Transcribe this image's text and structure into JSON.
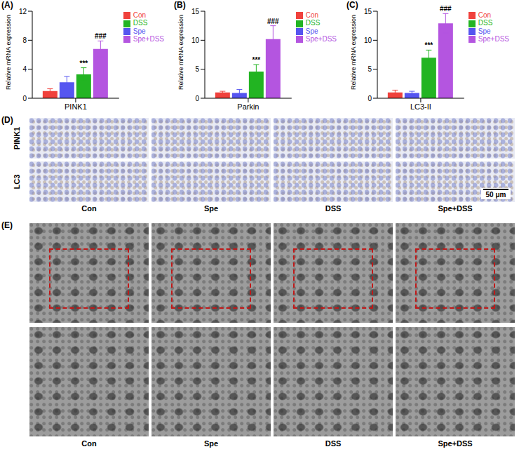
{
  "chart_data": [
    {
      "type": "bar",
      "panel": "(A)",
      "categories": [
        "PINK1"
      ],
      "ylabel": "Relative mRNA expression",
      "ylim": [
        0,
        12
      ],
      "yticks": [
        0,
        4,
        8,
        12
      ],
      "legend": "top right",
      "series": [
        {
          "name": "Con",
          "color": "#f0413c",
          "values": [
            1.0
          ],
          "errors": [
            0.3
          ]
        },
        {
          "name": "Spe",
          "color": "#5555f0",
          "values": [
            2.2
          ],
          "errors": [
            0.8
          ]
        },
        {
          "name": "DSS",
          "color": "#22b422",
          "values": [
            3.3
          ],
          "errors": [
            0.9
          ],
          "annotation": "***"
        },
        {
          "name": "Spe+DSS",
          "color": "#b455e0",
          "values": [
            6.8
          ],
          "errors": [
            1.1
          ],
          "annotation": "###"
        }
      ]
    },
    {
      "type": "bar",
      "panel": "(B)",
      "categories": [
        "Parkin"
      ],
      "ylabel": "Relative mRNA expression",
      "ylim": [
        0,
        15
      ],
      "yticks": [
        0,
        5,
        10,
        15
      ],
      "legend": "top right",
      "series": [
        {
          "name": "Con",
          "color": "#f0413c",
          "values": [
            1.0
          ],
          "errors": [
            0.2
          ]
        },
        {
          "name": "Spe",
          "color": "#5555f0",
          "values": [
            0.9
          ],
          "errors": [
            0.6
          ]
        },
        {
          "name": "DSS",
          "color": "#22b422",
          "values": [
            4.6
          ],
          "errors": [
            1.2
          ],
          "annotation": "***"
        },
        {
          "name": "Spe+DSS",
          "color": "#b455e0",
          "values": [
            10.2
          ],
          "errors": [
            2.3
          ],
          "annotation": "###"
        }
      ]
    },
    {
      "type": "bar",
      "panel": "(C)",
      "categories": [
        "LC3-II"
      ],
      "ylabel": "Relative mRNA expression",
      "ylim": [
        0,
        15
      ],
      "yticks": [
        0,
        5,
        10,
        15
      ],
      "legend": "top right",
      "series": [
        {
          "name": "Con",
          "color": "#f0413c",
          "values": [
            1.0
          ],
          "errors": [
            0.4
          ]
        },
        {
          "name": "Spe",
          "color": "#5555f0",
          "values": [
            0.9
          ],
          "errors": [
            0.3
          ]
        },
        {
          "name": "DSS",
          "color": "#22b422",
          "values": [
            7.0
          ],
          "errors": [
            1.3
          ],
          "annotation": "***"
        },
        {
          "name": "Spe+DSS",
          "color": "#b455e0",
          "values": [
            12.9
          ],
          "errors": [
            1.7
          ],
          "annotation": "###"
        }
      ]
    }
  ],
  "panels": [
    {
      "label": "(D)",
      "rows": [
        "PINK1",
        "LC3"
      ],
      "columns": [
        "Con",
        "Spe",
        "DSS",
        "Spe+DSS"
      ],
      "scale_bar": "50 μm"
    },
    {
      "label": "(E)",
      "columns": [
        "Con",
        "Spe",
        "DSS",
        "Spe+DSS"
      ]
    }
  ]
}
